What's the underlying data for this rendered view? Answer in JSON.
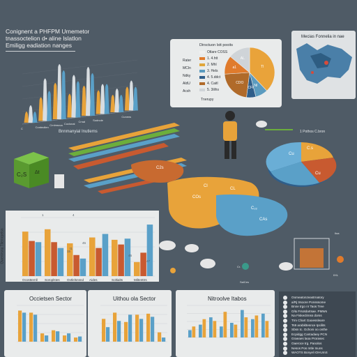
{
  "header": {
    "line1": "Conignent a PHFPM Urnemetors",
    "line2": "tnassoctelion d• aline lslatlon",
    "line3": "Emiligg eadiation nanges"
  },
  "legend_card": {
    "title": "Dirsctuon lstt pooits",
    "items": [
      {
        "label": "Otlare COSS",
        "color": "#f0f0f0"
      },
      {
        "label": "1. 4.htt",
        "color": "#e07b2c"
      },
      {
        "label": "2. Mhl",
        "color": "#e0a63a"
      },
      {
        "label": "3. Hels",
        "color": "#5b9bbf"
      },
      {
        "label": "4. 5.ddct",
        "color": "#2f5e8a"
      },
      {
        "label": "4. Caitl",
        "color": "#b06a2a"
      },
      {
        "label": "5. 3ilihs",
        "color": "#cfd4d8"
      }
    ],
    "side_labels": [
      "Rater",
      "MCIn",
      "Ndky",
      "AldU",
      "Acsh"
    ],
    "footer": "Tnerupy"
  },
  "map_card": {
    "title": "Mecias Fonnelia in nae"
  },
  "isometric": {
    "bar_label": "Bnnmanyial Inutlems",
    "box_label": "C₂S",
    "box_label2": "Δt",
    "blob_labels": [
      "Cl",
      "COs",
      "CL",
      "C₂₂",
      "CAs",
      "C2s"
    ],
    "legend": "1 Pothos C.bron",
    "right_labels": [
      "Cu",
      "C.s",
      "Cu"
    ],
    "small_labels": [
      "Cr.",
      "SalCes",
      "Iioa",
      "IIXL"
    ]
  },
  "icons": {
    "money": "money-bag-icon",
    "worker": "person-icon",
    "cage": "cage-icon",
    "eco": "leaf-icon"
  },
  "info_panel": {
    "rows": [
      "Oomeatonzeastrnatory",
      "a/Rj trsoore Ponsssome",
      "Bnne trgo nr Taos Tree",
      "O/& Frsotdartsae. PMWs",
      "Na Fiskeclirnss dorss",
      "Trm Chart Gaoessleare",
      "Ts9 arabkltesnce Ipcilits",
      "Sbsn tc. Gchoni oo onthe",
      "Ecpidgg Cantadaey PCN",
      "Graeaes laoa Prorasec",
      "Oaeroce trg. Panolos",
      "Nesos Pos mtle Inuns",
      "WAOTS Bonyel IOHUmS"
    ]
  },
  "chart_data": [
    {
      "type": "bar",
      "title": "",
      "categories": [
        "C",
        "Conteollen",
        "Crnlmsroa",
        "Coclonal",
        "Crnal",
        "Sodnole",
        "",
        "Cunens"
      ],
      "series": [
        {
          "values": [
            2,
            4,
            6,
            4,
            5,
            4,
            3,
            4
          ]
        },
        {
          "values": [
            3,
            7,
            9,
            7,
            8,
            5,
            4,
            5
          ]
        },
        {
          "values": [
            2,
            5,
            8,
            6,
            7,
            5,
            3,
            4
          ]
        }
      ],
      "ylim": [
        0,
        10
      ]
    },
    {
      "type": "pie",
      "labels": [
        "Tl",
        "Nl",
        "CFl",
        "CDO",
        "a1",
        "AL"
      ],
      "values": [
        38,
        8,
        6,
        22,
        12,
        14
      ],
      "colors": [
        "#e9a33a",
        "#5b9bbf",
        "#2f5e8a",
        "#b06a2a",
        "#e07b2c",
        "#cfd4d8"
      ]
    },
    {
      "type": "bar",
      "title": "",
      "ylabel": "Owenlrsnu Tllemrpelsn",
      "categories": [
        "Ocosttemll",
        "Soroplstes",
        "Ovtlelsnsnd",
        "Aides",
        "Soltialts",
        "Miltenttrs"
      ],
      "series": [
        {
          "values": [
            38,
            40,
            28,
            33,
            31,
            12
          ]
        },
        {
          "values": [
            30,
            29,
            18,
            24,
            27,
            20
          ]
        },
        {
          "values": [
            29,
            24,
            15,
            36,
            32,
            44
          ]
        }
      ],
      "data_labels": [
        "1",
        "4",
        "t1",
        "15",
        "45",
        "47",
        "45"
      ],
      "ylim": [
        0,
        50
      ]
    },
    {
      "type": "bar",
      "title": "Occietsen Sector",
      "categories": [
        "",
        "",
        "",
        "",
        "",
        ""
      ],
      "series": [
        {
          "values": [
            30,
            28,
            8,
            11,
            6,
            4
          ]
        },
        {
          "values": [
            28,
            26,
            6,
            10,
            8,
            5
          ]
        }
      ],
      "ylim": [
        0,
        35
      ]
    },
    {
      "type": "bar",
      "title": "Uithou ola Sector",
      "categories": [
        "",
        "",
        "",
        "",
        "",
        ""
      ],
      "series": [
        {
          "values": [
            22,
            28,
            19,
            26,
            27,
            9
          ]
        },
        {
          "values": [
            14,
            20,
            26,
            22,
            24,
            4
          ]
        }
      ],
      "ylim": [
        0,
        35
      ]
    },
    {
      "type": "bar",
      "title": "Nitroolve Itabos",
      "categories": [
        "",
        "",
        "",
        "",
        "",
        "",
        "",
        ""
      ],
      "series": [
        {
          "values": [
            8,
            14,
            22,
            12,
            16,
            30,
            20,
            26
          ]
        },
        {
          "values": [
            12,
            20,
            18,
            28,
            14,
            22,
            24,
            18
          ]
        }
      ],
      "ylim": [
        0,
        35
      ]
    }
  ],
  "colors": {
    "background": "#4f5b66",
    "orange": "#e8a33a",
    "red": "#c85a30",
    "blue": "#5aa0c8",
    "green": "#6cae3c",
    "grey": "#b7bfc6"
  }
}
